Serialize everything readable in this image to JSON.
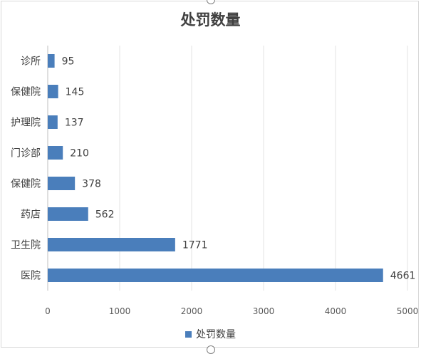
{
  "chart_data": {
    "type": "bar",
    "orientation": "horizontal",
    "title": "处罚数量",
    "categories": [
      "诊所",
      "保健院",
      "护理院",
      "门诊部",
      "保健院",
      "药店",
      "卫生院",
      "医院"
    ],
    "series": [
      {
        "name": "处罚数量",
        "values": [
          95,
          145,
          137,
          210,
          378,
          562,
          1771,
          4661
        ]
      }
    ],
    "xlim": [
      0,
      5000
    ],
    "xticks": [
      "0",
      "1000",
      "2000",
      "3000",
      "4000",
      "5000"
    ],
    "grid": true,
    "legend_position": "bottom",
    "bar_color": "#4a7ebb"
  }
}
